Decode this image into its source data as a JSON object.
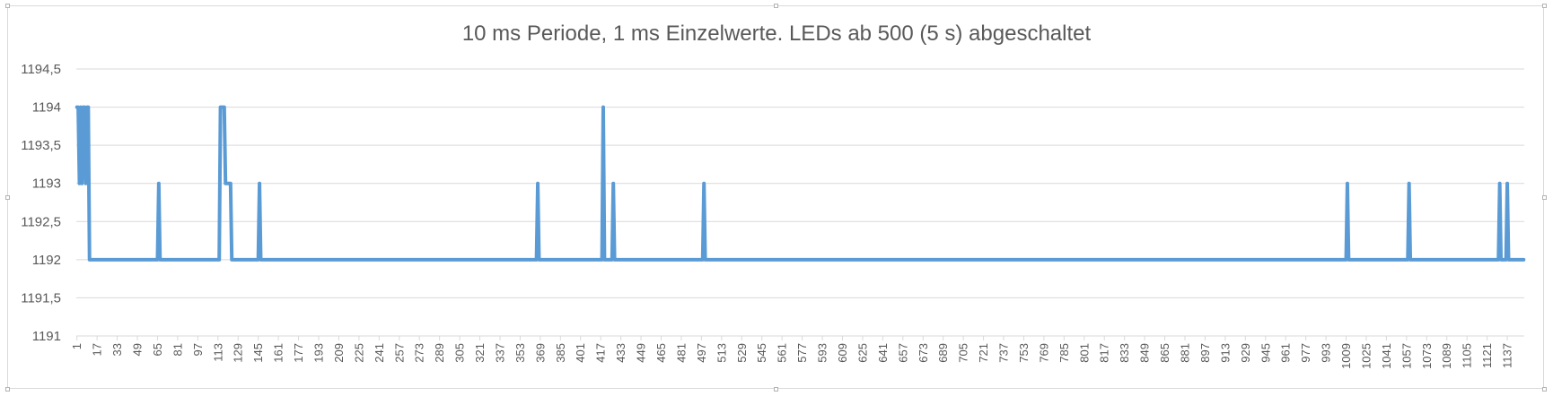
{
  "chart_data": {
    "type": "line",
    "title": "10 ms Periode, 1 ms Einzelwerte. LEDs ab 500 (5 s) abgeschaltet",
    "xlabel": "",
    "ylabel": "",
    "ylim": [
      1191,
      1194.5
    ],
    "y_ticks": [
      "1191",
      "1191,5",
      "1192",
      "1192,5",
      "1193",
      "1193,5",
      "1194",
      "1194,5"
    ],
    "x_count": 1150,
    "x_ticks": [
      "1",
      "17",
      "33",
      "49",
      "65",
      "81",
      "97",
      "113",
      "129",
      "145",
      "161",
      "177",
      "193",
      "209",
      "225",
      "241",
      "257",
      "273",
      "289",
      "305",
      "321",
      "337",
      "353",
      "369",
      "385",
      "401",
      "417",
      "433",
      "449",
      "465",
      "481",
      "497",
      "513",
      "529",
      "545",
      "561",
      "577",
      "593",
      "609",
      "625",
      "641",
      "657",
      "673",
      "689",
      "705",
      "721",
      "737",
      "753",
      "769",
      "785",
      "801",
      "817",
      "833",
      "849",
      "865",
      "881",
      "897",
      "913",
      "929",
      "945",
      "961",
      "977",
      "993",
      "1009",
      "1025",
      "1041",
      "1057",
      "1073",
      "1089",
      "1105",
      "1121",
      "1137"
    ],
    "series_color": "#5b9bd5",
    "grid": true,
    "baseline": 1192,
    "points": [
      {
        "x": 1,
        "y": 1194
      },
      {
        "x": 2,
        "y": 1194
      },
      {
        "x": 3,
        "y": 1193
      },
      {
        "x": 4,
        "y": 1194
      },
      {
        "x": 5,
        "y": 1193
      },
      {
        "x": 6,
        "y": 1194
      },
      {
        "x": 7,
        "y": 1194
      },
      {
        "x": 8,
        "y": 1193
      },
      {
        "x": 9,
        "y": 1194
      },
      {
        "x": 10,
        "y": 1194
      },
      {
        "x": 11,
        "y": 1192
      },
      {
        "x": 65,
        "y": 1192
      },
      {
        "x": 66,
        "y": 1193
      },
      {
        "x": 67,
        "y": 1192
      },
      {
        "x": 114,
        "y": 1192
      },
      {
        "x": 115,
        "y": 1194
      },
      {
        "x": 116,
        "y": 1194
      },
      {
        "x": 117,
        "y": 1194
      },
      {
        "x": 118,
        "y": 1194
      },
      {
        "x": 119,
        "y": 1193
      },
      {
        "x": 120,
        "y": 1193
      },
      {
        "x": 121,
        "y": 1193
      },
      {
        "x": 122,
        "y": 1193
      },
      {
        "x": 123,
        "y": 1193
      },
      {
        "x": 124,
        "y": 1192
      },
      {
        "x": 145,
        "y": 1192
      },
      {
        "x": 146,
        "y": 1193
      },
      {
        "x": 147,
        "y": 1192
      },
      {
        "x": 366,
        "y": 1192
      },
      {
        "x": 367,
        "y": 1193
      },
      {
        "x": 368,
        "y": 1192
      },
      {
        "x": 418,
        "y": 1192
      },
      {
        "x": 419,
        "y": 1194
      },
      {
        "x": 420,
        "y": 1192
      },
      {
        "x": 426,
        "y": 1192
      },
      {
        "x": 427,
        "y": 1193
      },
      {
        "x": 428,
        "y": 1192
      },
      {
        "x": 498,
        "y": 1192
      },
      {
        "x": 499,
        "y": 1193
      },
      {
        "x": 500,
        "y": 1192
      },
      {
        "x": 1009,
        "y": 1192
      },
      {
        "x": 1010,
        "y": 1193
      },
      {
        "x": 1011,
        "y": 1192
      },
      {
        "x": 1058,
        "y": 1192
      },
      {
        "x": 1059,
        "y": 1193
      },
      {
        "x": 1060,
        "y": 1192
      },
      {
        "x": 1130,
        "y": 1192
      },
      {
        "x": 1131,
        "y": 1193
      },
      {
        "x": 1132,
        "y": 1192
      },
      {
        "x": 1136,
        "y": 1192
      },
      {
        "x": 1137,
        "y": 1193
      },
      {
        "x": 1138,
        "y": 1192
      },
      {
        "x": 1150,
        "y": 1192
      }
    ]
  }
}
